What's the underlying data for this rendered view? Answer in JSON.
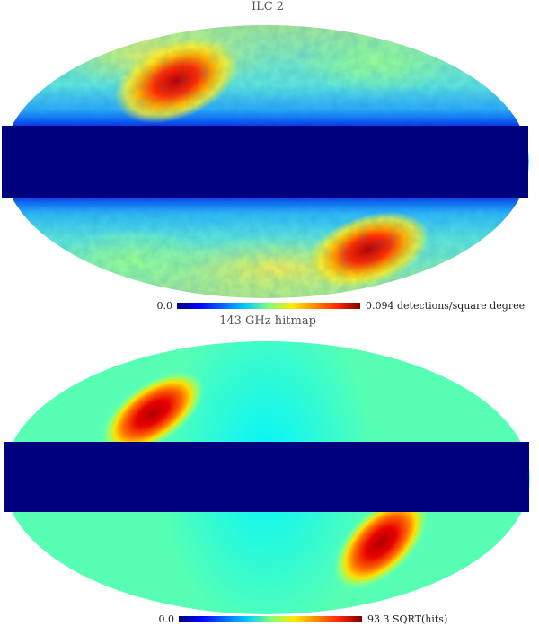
{
  "chart_data": [
    {
      "type": "heatmap",
      "projection": "mollweide",
      "title": "ILC 2",
      "colormap": "jet",
      "colorbar": {
        "min_label": "0.0",
        "max_label": "0.094",
        "unit": "detections/square degree"
      },
      "masked_band": "galactic plane",
      "features": [
        {
          "region": "upper-left",
          "level": "high"
        },
        {
          "region": "lower-right",
          "level": "high"
        }
      ]
    },
    {
      "type": "heatmap",
      "projection": "mollweide",
      "title": "143 GHz hitmap",
      "colormap": "jet",
      "colorbar": {
        "min_label": "0.0",
        "max_label": "93.3",
        "unit": "SQRT(hits)"
      },
      "masked_band": "galactic plane",
      "features": [
        {
          "region": "upper-left",
          "level": "high"
        },
        {
          "region": "lower-right",
          "level": "high"
        }
      ]
    }
  ],
  "colors": {
    "mask": "#00007f",
    "background": "#ffffff"
  }
}
